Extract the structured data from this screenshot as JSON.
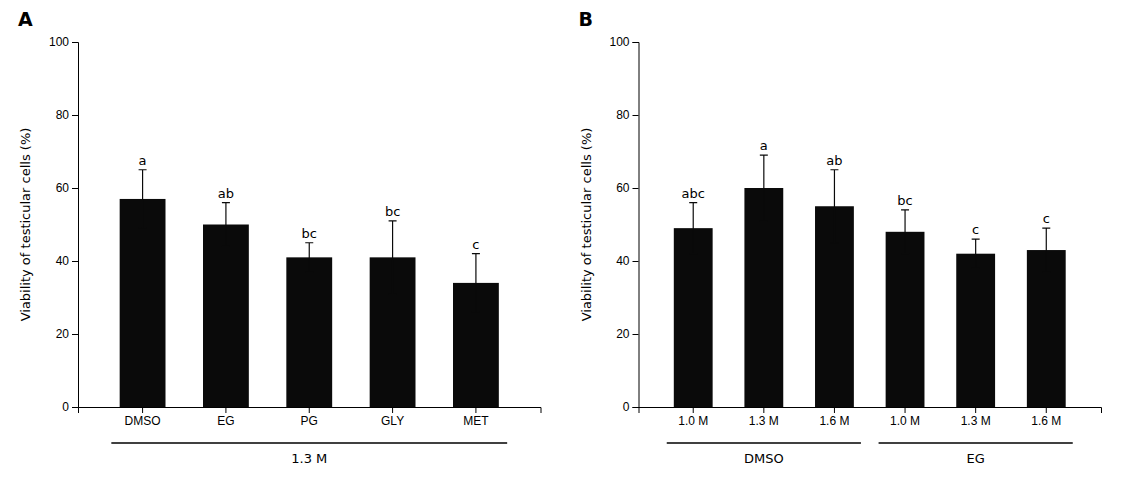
{
  "chart_data": [
    {
      "type": "bar",
      "title": "A",
      "categories": [
        "DMSO",
        "EG",
        "PG",
        "GLY",
        "MET"
      ],
      "values": [
        57,
        50,
        41,
        41,
        34
      ],
      "errors": [
        8,
        6,
        4,
        10,
        8
      ],
      "annotations": [
        "a",
        "ab",
        "bc",
        "bc",
        "c"
      ],
      "groups": [
        {
          "label": "1.3 M",
          "size": 5
        }
      ],
      "ylabel": "Viability of testicular cells (%)",
      "ylim": [
        0,
        100
      ],
      "yticks": [
        0,
        20,
        40,
        60,
        80,
        100
      ],
      "color": "#0a0a0a",
      "grid": false
    },
    {
      "type": "bar",
      "title": "B",
      "categories": [
        "1.0 M",
        "1.3 M",
        "1.6 M",
        "1.0 M",
        "1.3 M",
        "1.6 M"
      ],
      "values": [
        49,
        60,
        55,
        48,
        42,
        43
      ],
      "errors": [
        7,
        9,
        10,
        6,
        4,
        6
      ],
      "annotations": [
        "abc",
        "a",
        "ab",
        "bc",
        "c",
        "c"
      ],
      "groups": [
        {
          "label": "DMSO",
          "size": 3
        },
        {
          "label": "EG",
          "size": 3
        }
      ],
      "ylabel": "Viability of testicular cells (%)",
      "ylim": [
        0,
        100
      ],
      "yticks": [
        0,
        20,
        40,
        60,
        80,
        100
      ],
      "color": "#0a0a0a",
      "grid": false
    }
  ]
}
